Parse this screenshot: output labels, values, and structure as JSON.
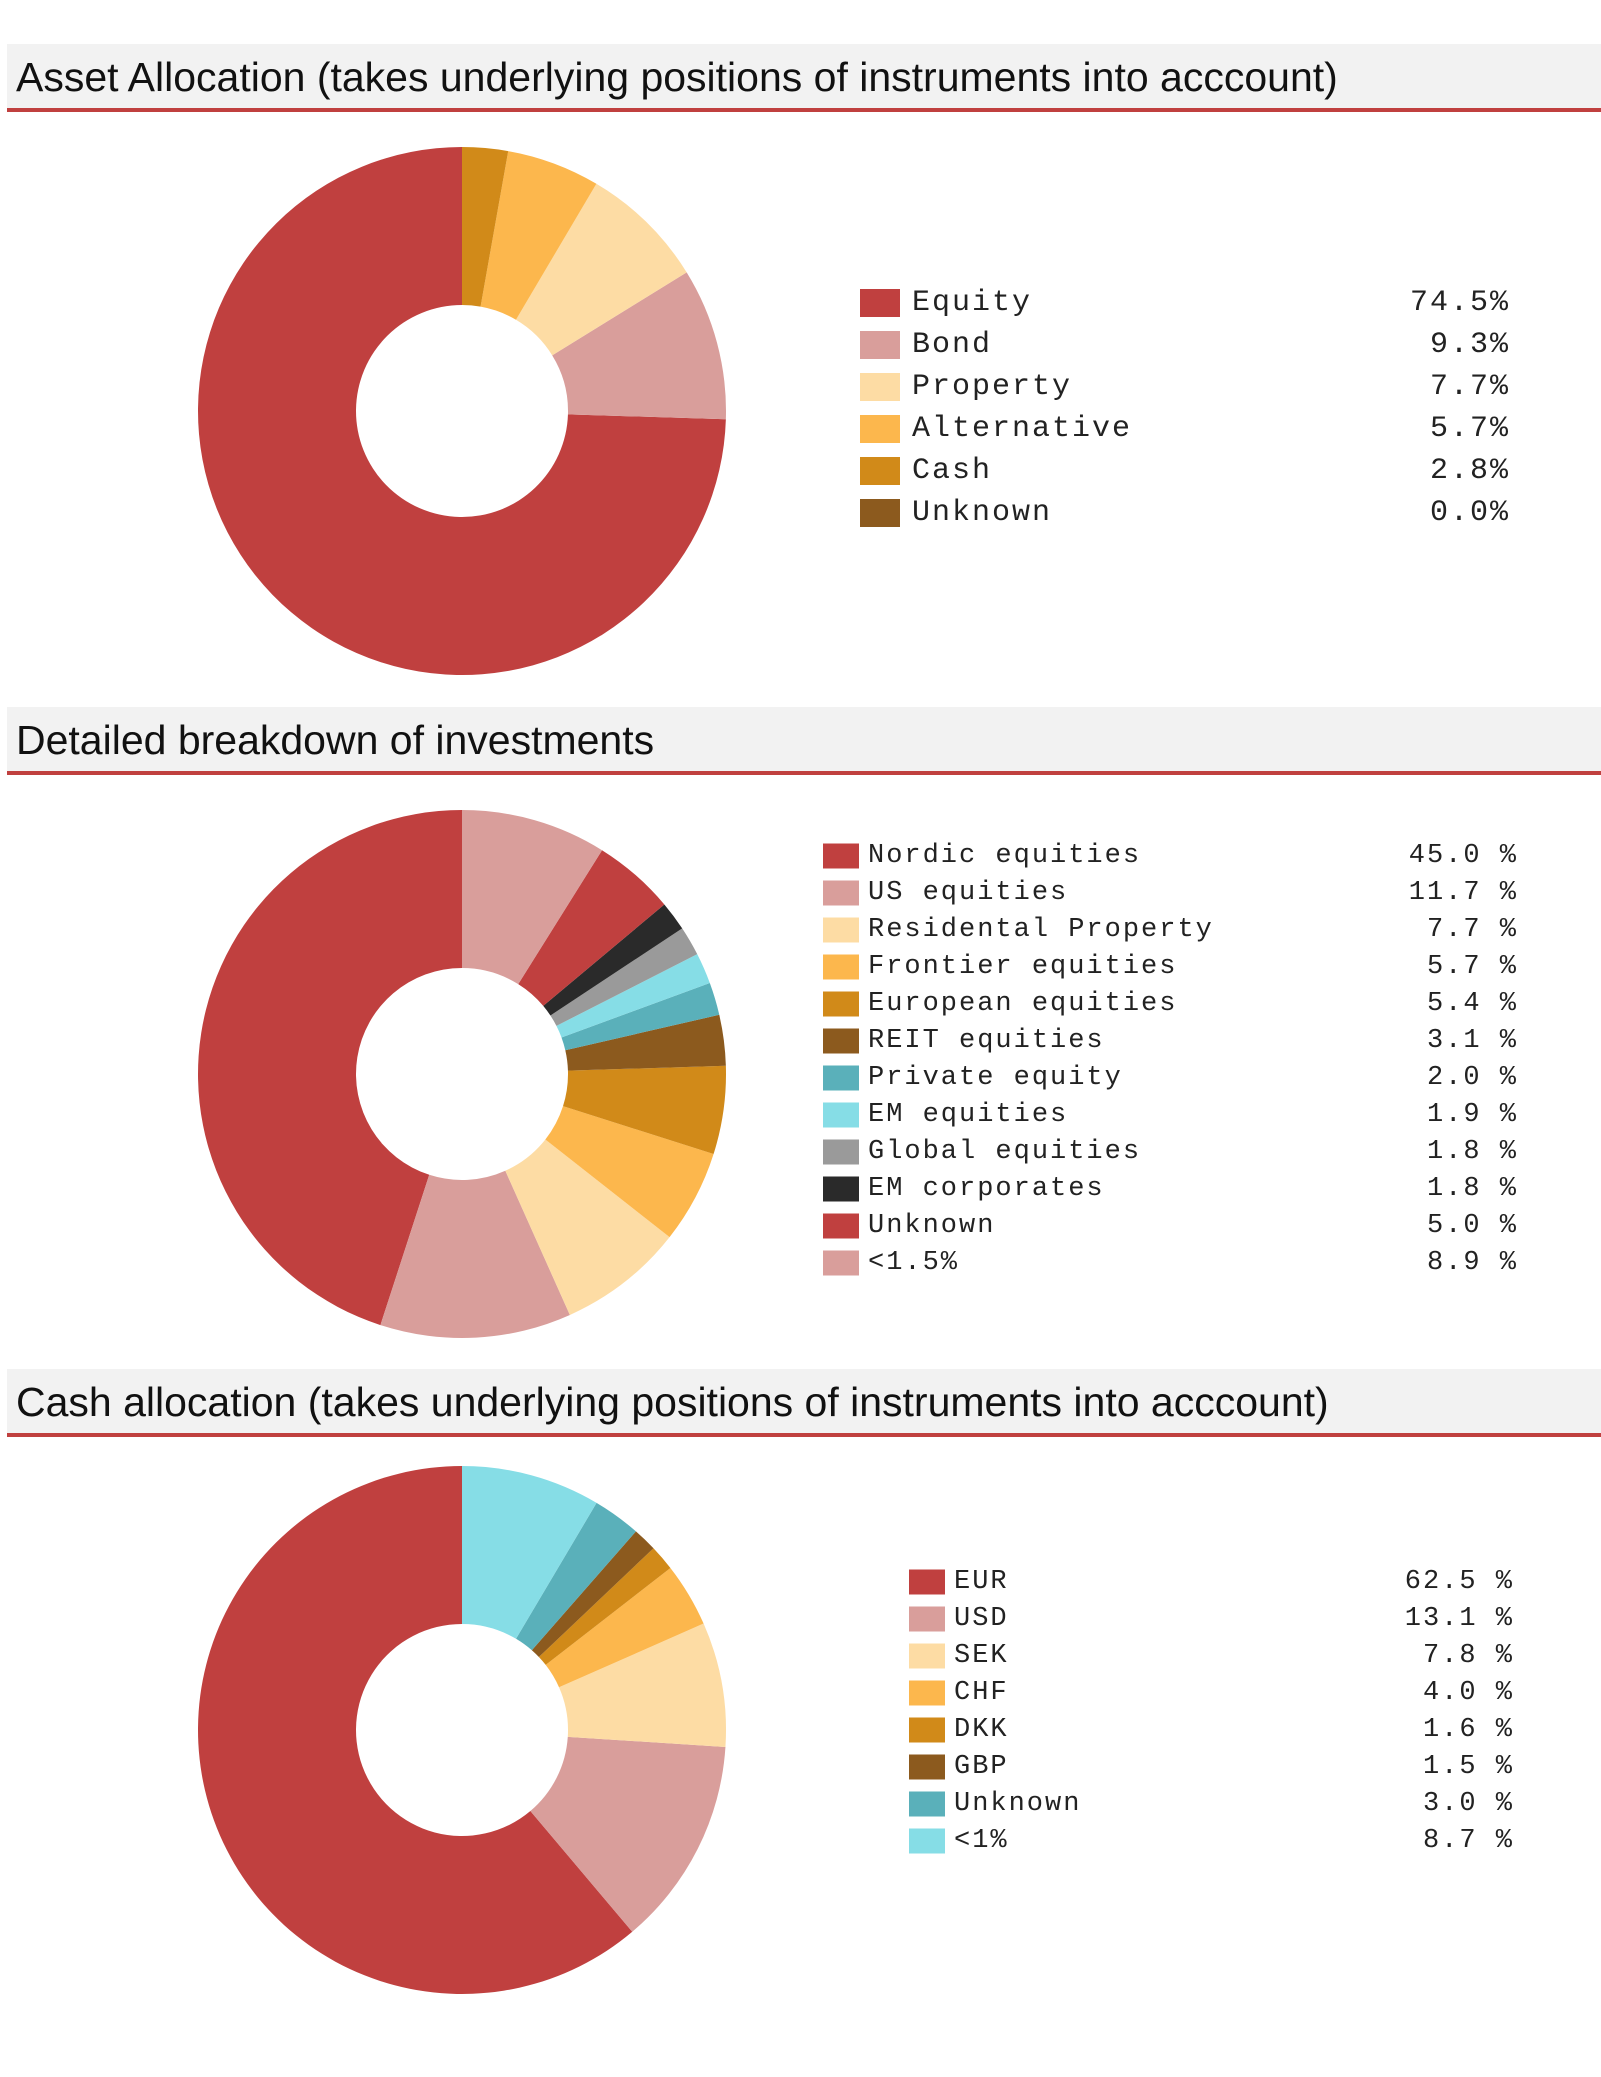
{
  "sections": [
    {
      "title": "Asset Allocation (takes underlying positions of instruments into acccount)"
    },
    {
      "title": "Detailed breakdown of investments"
    },
    {
      "title": "Cash allocation (takes underlying positions of instruments into acccount)"
    }
  ],
  "chart_data": [
    {
      "type": "pie",
      "title": "Asset Allocation (takes underlying positions of instruments into acccount)",
      "categories": [
        "Equity",
        "Bond",
        "Property",
        "Alternative",
        "Cash",
        "Unknown"
      ],
      "values": [
        74.5,
        9.3,
        7.7,
        5.7,
        2.8,
        0.0
      ],
      "value_labels": [
        "74.5%",
        "9.3%",
        "7.7%",
        "5.7%",
        "2.8%",
        "0.0%"
      ],
      "colors": [
        "#c0403f",
        "#d99e9b",
        "#fddca4",
        "#fcb74d",
        "#d18a19",
        "#8c5a1e"
      ],
      "donut": true,
      "legend_position": "right"
    },
    {
      "type": "pie",
      "title": "Detailed breakdown of investments",
      "categories": [
        "Nordic equities",
        "US equities",
        "Residental Property",
        "Frontier equities",
        "European equities",
        "REIT equities",
        "Private equity",
        "EM equities",
        "Global equities",
        "EM corporates",
        "Unknown",
        "<1.5%"
      ],
      "values": [
        45.0,
        11.7,
        7.7,
        5.7,
        5.4,
        3.1,
        2.0,
        1.9,
        1.8,
        1.8,
        5.0,
        8.9
      ],
      "value_labels": [
        "45.0 %",
        "11.7 %",
        "7.7 %",
        "5.7 %",
        "5.4 %",
        "3.1 %",
        "2.0 %",
        "1.9 %",
        "1.8 %",
        "1.8 %",
        "5.0 %",
        "8.9 %"
      ],
      "colors": [
        "#c0403f",
        "#d99e9b",
        "#fddca4",
        "#fcb74d",
        "#d18a19",
        "#8c5a1e",
        "#5ab0ba",
        "#86dde6",
        "#9a9a9a",
        "#2a2a2a",
        "#c0403f",
        "#d99e9b"
      ],
      "donut": true,
      "legend_position": "right"
    },
    {
      "type": "pie",
      "title": "Cash allocation (takes underlying positions of instruments into acccount)",
      "categories": [
        "EUR",
        "USD",
        "SEK",
        "CHF",
        "DKK",
        "GBP",
        "Unknown",
        "<1%"
      ],
      "values": [
        62.5,
        13.1,
        7.8,
        4.0,
        1.6,
        1.5,
        3.0,
        8.7
      ],
      "value_labels": [
        "62.5 %",
        "13.1 %",
        "7.8 %",
        "4.0 %",
        "1.6 %",
        "1.5 %",
        "3.0 %",
        "8.7 %"
      ],
      "colors": [
        "#c0403f",
        "#d99e9b",
        "#fddca4",
        "#fcb74d",
        "#d18a19",
        "#8c5a1e",
        "#5ab0ba",
        "#86dde6"
      ],
      "donut": true,
      "legend_position": "right"
    }
  ]
}
